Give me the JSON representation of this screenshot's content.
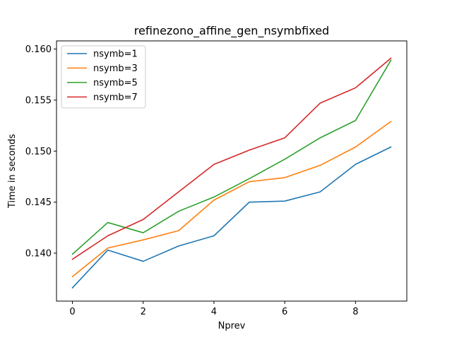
{
  "chart_data": {
    "type": "line",
    "title": "refinezono_affine_gen_nsymbfixed",
    "xlabel": "Nprev",
    "ylabel": "Time in seconds",
    "x": [
      0,
      1,
      2,
      3,
      4,
      5,
      6,
      7,
      8,
      9
    ],
    "xlim": [
      -0.45,
      9.45
    ],
    "ylim": [
      0.1353,
      0.1608
    ],
    "xticks": [
      0,
      2,
      4,
      6,
      8
    ],
    "xtick_labels": [
      "0",
      "2",
      "4",
      "6",
      "8"
    ],
    "yticks": [
      0.14,
      0.145,
      0.15,
      0.155,
      0.16
    ],
    "ytick_labels": [
      "0.140",
      "0.145",
      "0.150",
      "0.155",
      "0.160"
    ],
    "grid": false,
    "legend_position": "upper-left",
    "series": [
      {
        "name": "nsymb=1",
        "color": "#1f77b4",
        "values": [
          0.1366,
          0.1403,
          0.1392,
          0.1407,
          0.1417,
          0.145,
          0.1451,
          0.146,
          0.1487,
          0.1504
        ]
      },
      {
        "name": "nsymb=3",
        "color": "#ff7f0e",
        "values": [
          0.1377,
          0.1405,
          0.1413,
          0.1422,
          0.1452,
          0.147,
          0.1474,
          0.1486,
          0.1504,
          0.1529
        ]
      },
      {
        "name": "nsymb=5",
        "color": "#2ca02c",
        "values": [
          0.1399,
          0.143,
          0.142,
          0.1441,
          0.1455,
          0.1473,
          0.1492,
          0.1513,
          0.153,
          0.1589
        ]
      },
      {
        "name": "nsymb=7",
        "color": "#d62728",
        "values": [
          0.1394,
          0.1417,
          0.1433,
          0.146,
          0.1487,
          0.1501,
          0.1513,
          0.1547,
          0.1562,
          0.1591
        ]
      }
    ]
  }
}
